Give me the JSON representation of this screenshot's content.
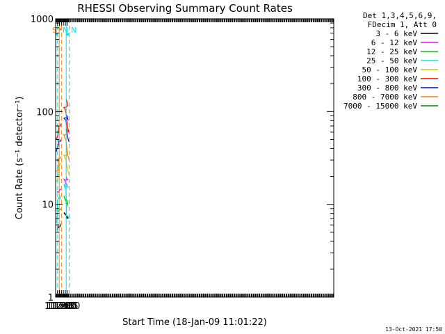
{
  "chart_data": {
    "type": "line",
    "title": "RHESSI Observing Summary Count Rates",
    "xlabel": "Start Time (18-Jan-09 11:01:22)",
    "ylabel": "Count Rate (s⁻¹ detector⁻¹)",
    "x_ticks": [
      "11:15",
      "11:30",
      "11:45",
      "12:00",
      "12:15",
      "12:30"
    ],
    "y_ticks": [
      "1",
      "10",
      "100",
      "1000"
    ],
    "ylim": [
      1,
      1000
    ],
    "yscale": "log",
    "xlim_minutes": [
      11.0,
      47.0
    ],
    "legend_header": [
      "Det 1,3,4,5,6,9,",
      "FDecim 1, Att 0"
    ],
    "legend_position": "right",
    "footer_date": "13-Oct-2021 17:50",
    "series": [
      {
        "name": "3 - 6 keV",
        "color": "#000000",
        "segments": [
          {
            "x": [
              11.12,
              11.25,
              11.45
            ],
            "y": [
              5.5,
              5.7,
              6.2
            ]
          },
          {
            "x": [
              11.83,
              11.95,
              12.05,
              12.2,
              12.3
            ],
            "y": [
              7.0,
              7.2,
              8.0,
              7.6,
              7.0
            ]
          }
        ]
      },
      {
        "name": "6 - 12 keV",
        "color": "#ff00ff",
        "segments": [
          {
            "x": [
              11.12,
              11.25,
              11.45
            ],
            "y": [
              13.5,
              14.0,
              14.5
            ]
          },
          {
            "x": [
              11.83,
              11.95,
              12.05,
              12.2,
              12.3
            ],
            "y": [
              19.5,
              18.5,
              18.0,
              17.0,
              16.0
            ]
          }
        ]
      },
      {
        "name": "12 - 25 keV",
        "color": "#00cc00",
        "segments": [
          {
            "x": [
              11.12,
              11.25,
              11.45
            ],
            "y": [
              8.0,
              8.5,
              9.0
            ]
          },
          {
            "x": [
              11.83,
              11.95,
              12.05,
              12.2,
              12.3
            ],
            "y": [
              11.0,
              10.0,
              12.0,
              11.0,
              9.5
            ]
          }
        ]
      },
      {
        "name": "25 - 50 keV",
        "color": "#00e5e5",
        "segments": [
          {
            "x": [
              11.0,
              11.1,
              11.15,
              11.35,
              11.45
            ],
            "y": [
              6.5,
              6.5,
              11.0,
              12.0,
              12.5
            ]
          },
          {
            "x": [
              11.83,
              11.95,
              12.05,
              12.2,
              12.25,
              12.45
            ],
            "y": [
              16.0,
              15.5,
              16.0,
              15.0,
              7.5,
              7.0
            ]
          }
        ]
      },
      {
        "name": "50 - 100 keV",
        "color": "#d8c800",
        "segments": [
          {
            "x": [
              11.0,
              11.15,
              11.25,
              11.45
            ],
            "y": [
              18.0,
              18.5,
              26.0,
              28.0
            ]
          },
          {
            "x": [
              11.83,
              11.95,
              12.05,
              12.2,
              12.3,
              12.45
            ],
            "y": [
              40.0,
              35.0,
              33.0,
              30.0,
              24.0,
              21.0
            ]
          }
        ]
      },
      {
        "name": "100 - 300 keV",
        "color": "#ff0000",
        "segments": [
          {
            "x": [
              11.0,
              11.15,
              11.25,
              11.45
            ],
            "y": [
              50.0,
              52.0,
              68.0,
              75.0
            ]
          },
          {
            "x": [
              11.83,
              11.95,
              12.05,
              12.2,
              12.3,
              12.45
            ],
            "y": [
              135.0,
              118.0,
              108.0,
              100.0,
              72.0,
              58.0
            ]
          }
        ]
      },
      {
        "name": "300 - 800 keV",
        "color": "#0000ff",
        "segments": [
          {
            "x": [
              11.0,
              11.15,
              11.25,
              11.45
            ],
            "y": [
              38.0,
              40.0,
              48.0,
              50.0
            ]
          },
          {
            "x": [
              11.83,
              11.95,
              12.05,
              12.2,
              12.3,
              12.45
            ],
            "y": [
              92.0,
              85.0,
              82.0,
              78.0,
              55.0,
              47.0
            ]
          }
        ]
      },
      {
        "name": "800 - 7000 keV",
        "color": "#ff8000",
        "segments": [
          {
            "x": [
              11.0,
              11.15,
              11.25,
              11.45
            ],
            "y": [
              23.0,
              24.0,
              31.0,
              33.0
            ]
          },
          {
            "x": [
              11.83,
              11.95,
              12.05,
              12.2,
              12.3,
              12.45
            ],
            "y": [
              70.0,
              60.0,
              55.0,
              50.0,
              36.0,
              30.0
            ]
          }
        ]
      },
      {
        "name": "7000 - 15000 keV",
        "color": "#008000",
        "segments": []
      }
    ],
    "flags": [
      {
        "label": "N",
        "color": "#00e5e5",
        "bar": [
          11.0,
          11.15
        ],
        "bar_y": 680,
        "edges": [
          11.15
        ],
        "edges_style": "dashed"
      },
      {
        "label": "N",
        "color": "#00e5e5",
        "bar": [
          12.22,
          12.45
        ],
        "bar_y": 680,
        "edges": [
          12.22,
          12.45
        ],
        "edges_style": "mixed"
      },
      {
        "label": "S",
        "color": "#ff8000",
        "bar": [
          11.28,
          11.45
        ],
        "bar_y": 770,
        "edges": [
          11.28,
          11.45
        ],
        "edges_style": "mixed"
      }
    ]
  }
}
